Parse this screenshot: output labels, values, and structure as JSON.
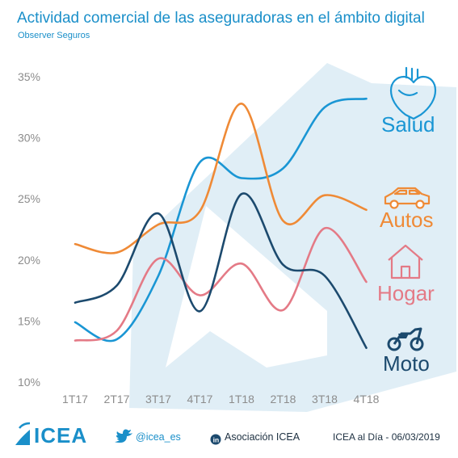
{
  "header": {
    "title": "Actividad comercial de las aseguradoras en el ámbito digital",
    "subtitle": "Observer Seguros"
  },
  "footer": {
    "logo_text": "ICEA",
    "twitter": "@icea_es",
    "linkedin": "Asociación ICEA",
    "source": "ICEA al Día - 06/03/2019",
    "twitter_icon": "twitter-bird-icon",
    "linkedin_icon": "linkedin-icon"
  },
  "colors": {
    "Salud": "#1a96d4",
    "Autos": "#ef8a36",
    "Hogar": "#e47a86",
    "Moto": "#1c4a6e",
    "background_shape": "#dbebf5",
    "axis_text": "#8c8c8c"
  },
  "chart_data": {
    "type": "line",
    "title": "Actividad comercial de las aseguradoras en el ámbito digital",
    "subtitle": "Observer Seguros",
    "categories": [
      "1T17",
      "2T17",
      "3T17",
      "4T17",
      "1T18",
      "2T18",
      "3T18",
      "4T18"
    ],
    "yticks": [
      "10%",
      "15%",
      "20%",
      "25%",
      "30%",
      "35%"
    ],
    "ylim": [
      10,
      35
    ],
    "grid": false,
    "smooth": true,
    "series": [
      {
        "name": "Salud",
        "icon": "heart-icon",
        "values": [
          14.9,
          13.5,
          18.7,
          28.0,
          26.7,
          27.5,
          32.5,
          33.2
        ]
      },
      {
        "name": "Autos",
        "icon": "car-icon",
        "values": [
          21.3,
          20.6,
          22.9,
          24.0,
          32.8,
          23.2,
          25.3,
          24.1
        ]
      },
      {
        "name": "Hogar",
        "icon": "house-icon",
        "values": [
          13.4,
          14.2,
          20.1,
          17.1,
          19.7,
          15.9,
          22.6,
          18.2
        ]
      },
      {
        "name": "Moto",
        "icon": "motorcycle-icon",
        "values": [
          16.5,
          17.9,
          23.8,
          15.8,
          25.4,
          19.6,
          18.7,
          12.8
        ]
      }
    ]
  }
}
